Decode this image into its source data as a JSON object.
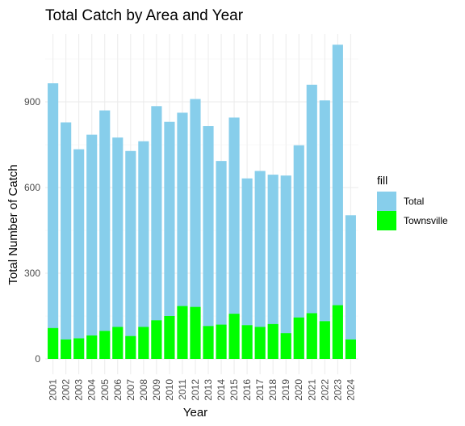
{
  "chart_data": {
    "type": "bar",
    "title": "Total Catch by Area and Year",
    "xlabel": "Year",
    "ylabel": "Total Number of Catch",
    "ylim": [
      0,
      1140
    ],
    "yticks": [
      0,
      300,
      600,
      900
    ],
    "grid": true,
    "categories": [
      "2001",
      "2002",
      "2003",
      "2004",
      "2005",
      "2006",
      "2007",
      "2008",
      "2009",
      "2010",
      "2011",
      "2012",
      "2013",
      "2014",
      "2015",
      "2016",
      "2017",
      "2018",
      "2019",
      "2020",
      "2021",
      "2022",
      "2023",
      "2024"
    ],
    "series": [
      {
        "name": "Total",
        "color": "#87CEEB",
        "values": [
          965,
          828,
          734,
          785,
          870,
          775,
          728,
          762,
          885,
          830,
          862,
          910,
          815,
          693,
          845,
          632,
          658,
          645,
          642,
          748,
          960,
          905,
          1100,
          503
        ]
      },
      {
        "name": "Townsville",
        "color": "#00FF00",
        "values": [
          108,
          68,
          72,
          82,
          98,
          112,
          80,
          112,
          135,
          150,
          185,
          182,
          115,
          120,
          158,
          118,
          112,
          122,
          90,
          145,
          160,
          132,
          188,
          68
        ]
      }
    ],
    "legend": {
      "title": "fill",
      "position": "right"
    }
  }
}
